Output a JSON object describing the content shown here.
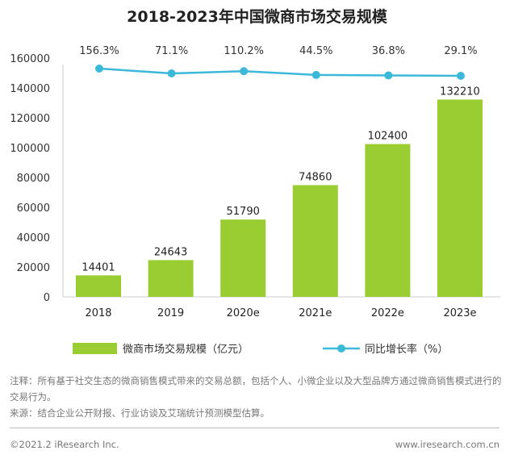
{
  "chart_data": {
    "type": "bar",
    "title": "2018-2023年中国微商市场交易规模",
    "categories": [
      "2018",
      "2019",
      "2020e",
      "2021e",
      "2022e",
      "2023e"
    ],
    "series": [
      {
        "name": "微商市场交易规模（亿元）",
        "type": "bar",
        "values": [
          14401,
          24643,
          51790,
          74860,
          102400,
          132210
        ],
        "color": "#9ACD32"
      },
      {
        "name": "同比增长率（%）",
        "type": "line",
        "values": [
          156.3,
          71.1,
          110.2,
          44.5,
          36.8,
          29.1
        ],
        "labels": [
          "156.3%",
          "71.1%",
          "110.2%",
          "44.5%",
          "36.8%",
          "29.1%"
        ],
        "color": "#3CB8D8"
      }
    ],
    "ylim": [
      0,
      160000
    ],
    "yticks": [
      0,
      20000,
      40000,
      60000,
      80000,
      100000,
      120000,
      140000,
      160000
    ],
    "legend": "bottom",
    "grid": false
  },
  "notes": {
    "note": "注释：所有基于社交生态的微商销售模式带来的交易总额，包括个人、小微企业以及大型品牌方通过微商销售模式进行的交易行为。",
    "source": "来源：结合企业公开财报、行业访谈及艾瑞统计预测模型估算。"
  },
  "footer": {
    "copyright": "©2021.2 iResearch Inc.",
    "website": "www.iresearch.com.cn"
  }
}
